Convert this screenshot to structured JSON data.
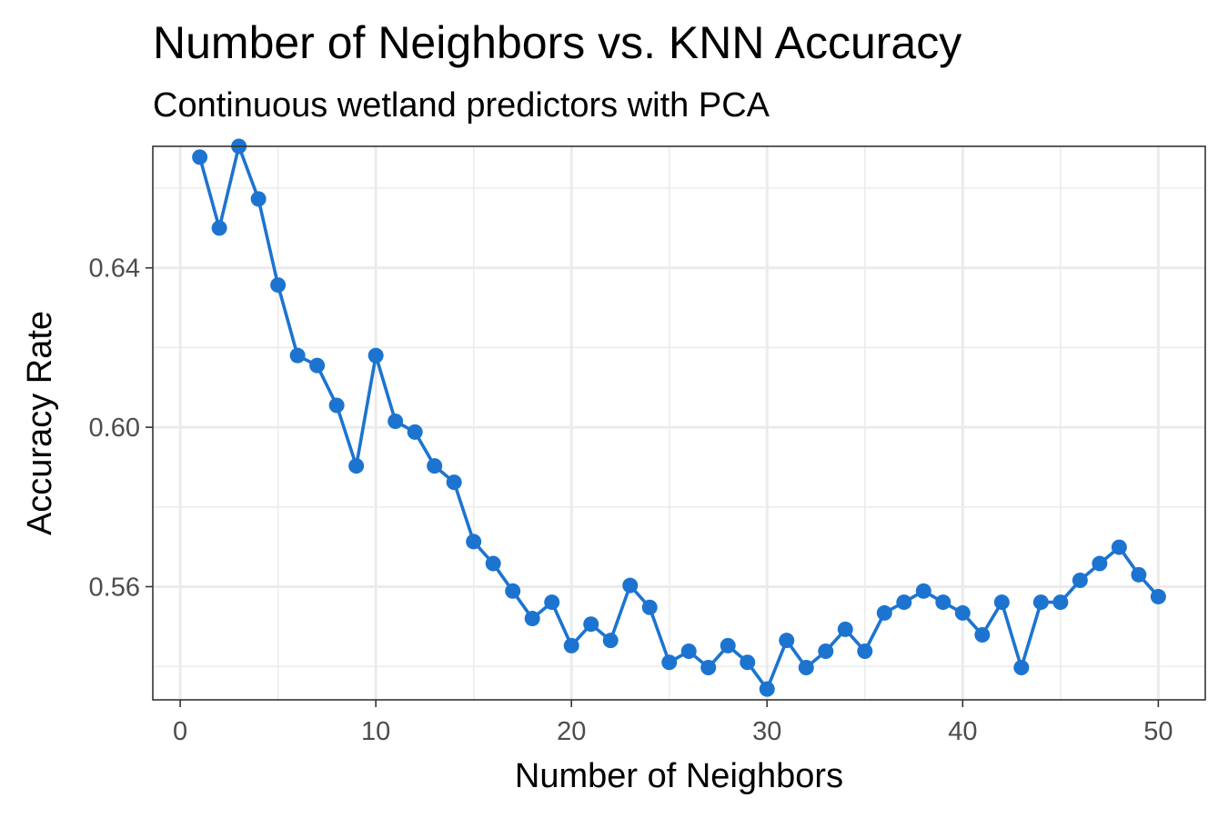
{
  "chart_data": {
    "type": "line",
    "title": "Number of Neighbors vs. KNN Accuracy",
    "subtitle": "Continuous wetland predictors with PCA",
    "xlabel": "Number of Neighbors",
    "ylabel": "Accuracy Rate",
    "xlim": [
      -1.4,
      52.4
    ],
    "ylim": [
      0.5316,
      0.6705
    ],
    "xticks": [
      0,
      10,
      20,
      30,
      40,
      50
    ],
    "xtick_labels": [
      "0",
      "10",
      "20",
      "30",
      "40",
      "50"
    ],
    "yticks": [
      0.56,
      0.6,
      0.64
    ],
    "ytick_labels": [
      "0.56",
      "0.60",
      "0.64"
    ],
    "grid": true,
    "legend": "none",
    "series": [
      {
        "color": "#1c74d0",
        "markers": true,
        "x": [
          1,
          2,
          3,
          4,
          5,
          6,
          7,
          8,
          9,
          10,
          11,
          12,
          13,
          14,
          15,
          16,
          17,
          18,
          19,
          20,
          21,
          22,
          23,
          24,
          25,
          26,
          27,
          28,
          29,
          30,
          31,
          32,
          33,
          34,
          35,
          36,
          37,
          38,
          39,
          40,
          41,
          42,
          43,
          44,
          45,
          46,
          47,
          48,
          49,
          50
        ],
        "y": [
          0.6678,
          0.65,
          0.6705,
          0.6573,
          0.6357,
          0.618,
          0.6155,
          0.6055,
          0.5903,
          0.618,
          0.6015,
          0.5988,
          0.5903,
          0.5862,
          0.5713,
          0.5658,
          0.5589,
          0.552,
          0.5561,
          0.5452,
          0.5506,
          0.5465,
          0.5603,
          0.5548,
          0.541,
          0.5438,
          0.5397,
          0.5452,
          0.541,
          0.5343,
          0.5465,
          0.5397,
          0.5438,
          0.5493,
          0.5438,
          0.5534,
          0.5561,
          0.5589,
          0.5561,
          0.5534,
          0.5479,
          0.5561,
          0.5397,
          0.5561,
          0.5561,
          0.5616,
          0.5658,
          0.5699,
          0.563,
          0.5575
        ]
      }
    ]
  }
}
